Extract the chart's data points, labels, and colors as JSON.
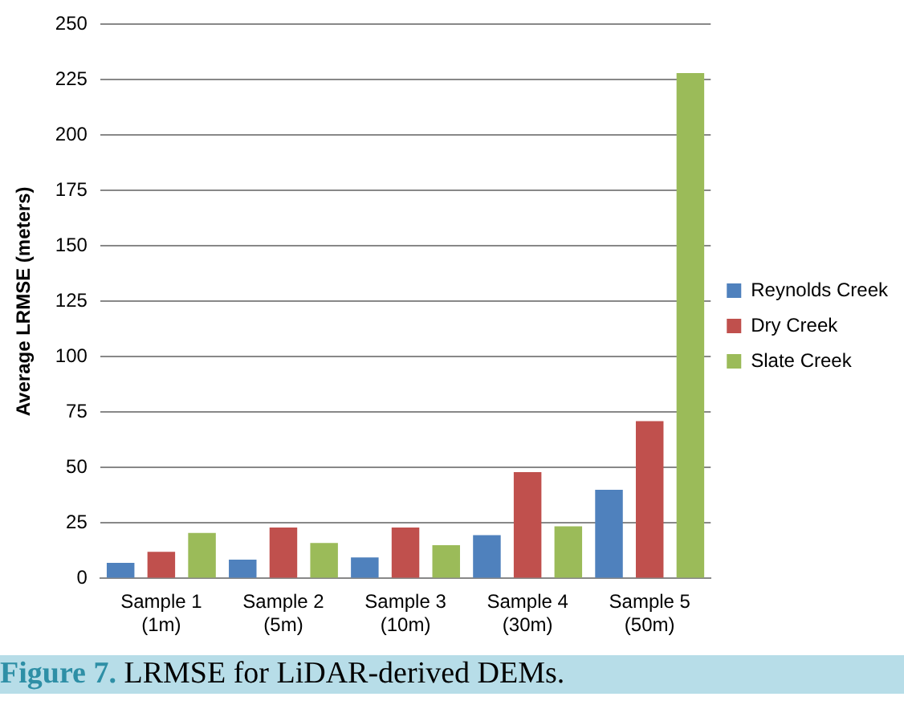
{
  "chart_data": {
    "type": "bar",
    "ylabel": "Average LRMSE (meters)",
    "categories": [
      "Sample 1\n(1m)",
      "Sample 2\n(5m)",
      "Sample 3\n(10m)",
      "Sample 4\n(30m)",
      "Sample 5\n(50m)"
    ],
    "series": [
      {
        "name": "Reynolds Creek",
        "color": "#4f81bd",
        "values": [
          7,
          8.5,
          9.5,
          19.5,
          40
        ]
      },
      {
        "name": "Dry Creek",
        "color": "#c0504d",
        "values": [
          12,
          23,
          23,
          48,
          71
        ]
      },
      {
        "name": "Slate Creek",
        "color": "#9bbb59",
        "values": [
          20.5,
          16,
          15,
          23.5,
          228
        ]
      }
    ],
    "ylim": [
      0,
      250
    ],
    "yticks": [
      0,
      25,
      50,
      75,
      100,
      125,
      150,
      175,
      200,
      225,
      250
    ],
    "grid": "y",
    "legend": "right",
    "annotations": [
      "Figure 7. LRMSE for LiDAR-derived DEMs."
    ]
  }
}
